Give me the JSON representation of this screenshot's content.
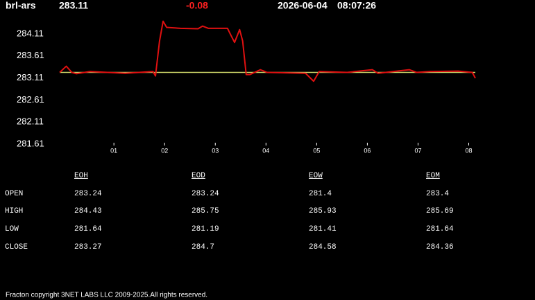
{
  "header": {
    "symbol": "brl-ars",
    "price": 283.11,
    "change": -0.08,
    "date": "2026-06-04",
    "time": "08:07:26"
  },
  "chart_data": {
    "type": "line",
    "xlim": [
      -0.07,
      8.13
    ],
    "xticks": [
      {
        "value": 1,
        "label": "01"
      },
      {
        "value": 2,
        "label": "02"
      },
      {
        "value": 3,
        "label": "03"
      },
      {
        "value": 4,
        "label": "04"
      },
      {
        "value": 5,
        "label": "05"
      },
      {
        "value": 6,
        "label": "06"
      },
      {
        "value": 7,
        "label": "07"
      },
      {
        "value": 8,
        "label": "08"
      }
    ],
    "ylim": [
      281.61,
      284.28
    ],
    "yticks": [
      284.11,
      283.61,
      283.11,
      282.61,
      282.11,
      281.61
    ],
    "series": [
      {
        "color": "#e01010",
        "x": [
          -0.07,
          0.06,
          0.17,
          0.26,
          0.53,
          1.22,
          1.77,
          1.82,
          1.9,
          1.97,
          2.04,
          2.31,
          2.66,
          2.75,
          2.86,
          3.24,
          3.3,
          3.38,
          3.48,
          3.54,
          3.61,
          3.68,
          3.89,
          4.02,
          4.78,
          4.94,
          5.05,
          5.6,
          6.1,
          6.21,
          6.83,
          6.97,
          7.24,
          7.79,
          8.07,
          8.13
        ],
        "values": [
          283.11,
          283.25,
          283.11,
          283.08,
          283.13,
          283.09,
          283.13,
          283.03,
          283.82,
          284.27,
          284.13,
          284.11,
          284.1,
          284.16,
          284.11,
          284.11,
          283.97,
          283.79,
          284.08,
          283.82,
          283.06,
          283.06,
          283.17,
          283.11,
          283.09,
          282.91,
          283.13,
          283.11,
          283.17,
          283.09,
          283.17,
          283.11,
          283.13,
          283.14,
          283.11,
          282.98
        ]
      },
      {
        "color": "#cfd86a",
        "x": [
          -0.07,
          8.13
        ],
        "values": [
          283.11,
          283.11
        ]
      }
    ]
  },
  "table": {
    "columns": [
      "EOH",
      "EOD",
      "EOW",
      "EOM"
    ],
    "rows": [
      {
        "label": "OPEN",
        "values": [
          283.24,
          283.24,
          281.4,
          283.4
        ]
      },
      {
        "label": "HIGH",
        "values": [
          284.43,
          285.75,
          285.93,
          285.69
        ]
      },
      {
        "label": "LOW",
        "values": [
          281.64,
          281.19,
          281.41,
          281.64
        ]
      },
      {
        "label": "CLOSE",
        "values": [
          283.27,
          284.7,
          284.58,
          284.36
        ]
      }
    ]
  },
  "footer": "Fracton copyright 3NET LABS LLC 2009-2025.All rights reserved."
}
